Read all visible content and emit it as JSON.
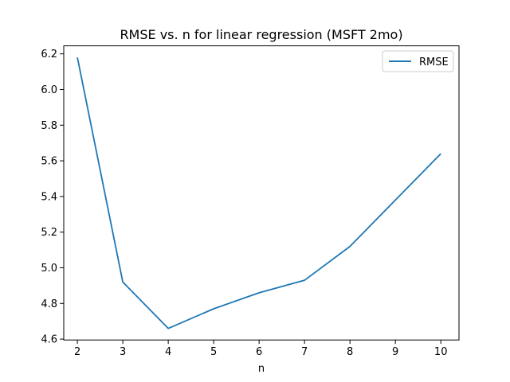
{
  "chart_data": {
    "type": "line",
    "title": "RMSE vs. n for linear regression (MSFT 2mo)",
    "xlabel": "n",
    "ylabel": "",
    "x": [
      2,
      3,
      4,
      5,
      6,
      7,
      8,
      9,
      10
    ],
    "xlim": [
      1.7,
      10.4
    ],
    "ylim": [
      4.595,
      6.245
    ],
    "x_ticks": [
      2,
      3,
      4,
      5,
      6,
      7,
      8,
      9,
      10
    ],
    "y_ticks": [
      4.6,
      4.8,
      5.0,
      5.2,
      5.4,
      5.6,
      5.8,
      6.0,
      6.2
    ],
    "y_tick_labels": [
      "4.6",
      "4.8",
      "5.0",
      "5.2",
      "5.4",
      "5.6",
      "5.8",
      "6.0",
      "6.2"
    ],
    "grid": false,
    "legend_position": "top-right",
    "series": [
      {
        "name": "RMSE",
        "color": "#1f77b4",
        "values": [
          6.18,
          4.92,
          4.66,
          4.77,
          4.86,
          4.93,
          5.12,
          5.38,
          5.64
        ]
      }
    ]
  }
}
